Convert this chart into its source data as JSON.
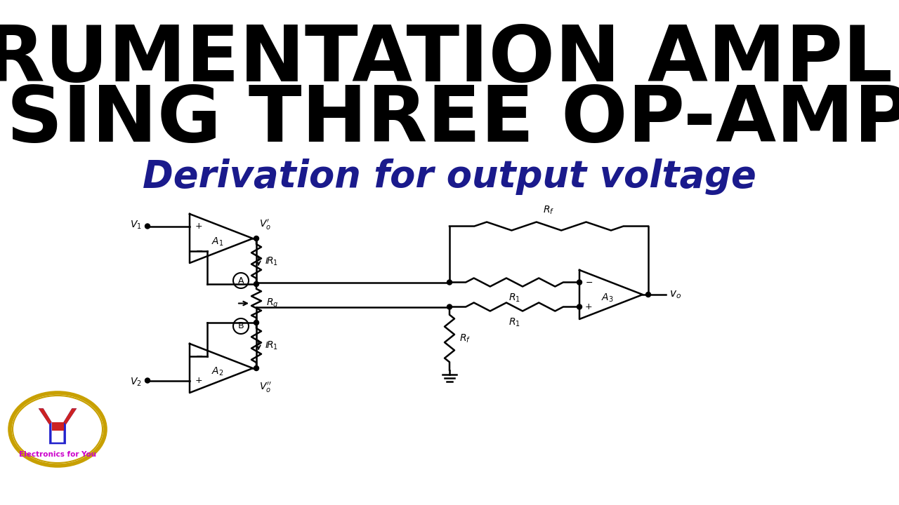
{
  "title_line1": "INSTRUMENTATION AMPLIFIER",
  "title_line2": "USING THREE OP-AMPs",
  "subtitle": "Derivation for output voltage",
  "title_color": "#000000",
  "subtitle_color": "#1a1a8c",
  "bg_color": "#ffffff",
  "circuit_color": "#000000",
  "logo_text": "Electronics for You",
  "logo_text_color": "#cc00cc",
  "logo_border_color": "#c8a000",
  "logo_y_blue": "#2222cc",
  "logo_y_red": "#cc2222",
  "title1_fontsize": 80,
  "title2_fontsize": 80,
  "subtitle_fontsize": 38
}
